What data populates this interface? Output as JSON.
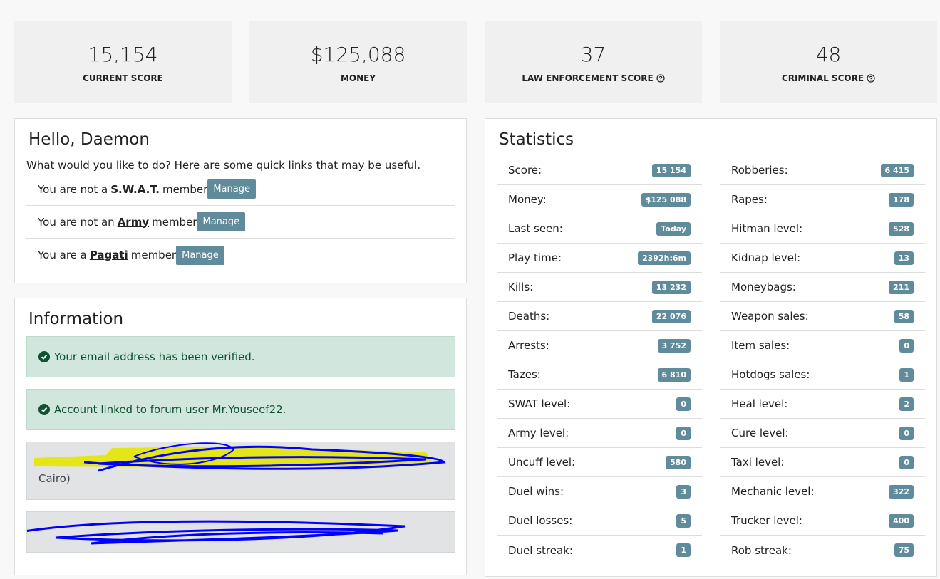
{
  "cards": [
    {
      "value": "15,154",
      "label": "CURRENT SCORE"
    },
    {
      "value": "$125,088",
      "label": "MONEY"
    },
    {
      "value": "37",
      "label": "LAW ENFORCEMENT SCORE"
    },
    {
      "value": "48",
      "label": "CRIMINAL SCORE"
    }
  ],
  "hello": {
    "title": "Hello, Daemon",
    "intro": "What would you like to do? Here are some quick links that may be useful.",
    "links": [
      {
        "prefix": "You are not a",
        "name": "S.W.A.T.",
        "suffix": "member",
        "button": "Manage"
      },
      {
        "prefix": "You are not an",
        "name": "Army",
        "suffix": "member",
        "button": "Manage"
      },
      {
        "prefix": "You are a",
        "name": "Pagati",
        "suffix": "member",
        "button": "Manage"
      }
    ]
  },
  "information": {
    "title": "Information",
    "alerts": [
      "Your email address has been verified.",
      "Account linked to forum user Mr.Youseef22."
    ],
    "notes": [
      "Cairo)"
    ]
  },
  "statistics": {
    "title": "Statistics",
    "left": [
      [
        "Score:",
        "15 154"
      ],
      [
        "Money:",
        "$125 088"
      ],
      [
        "Last seen:",
        "Today"
      ],
      [
        "Play time:",
        "2392h:6m"
      ],
      [
        "Kills:",
        "13 232"
      ],
      [
        "Deaths:",
        "22 076"
      ],
      [
        "Arrests:",
        "3 752"
      ],
      [
        "Tazes:",
        "6 810"
      ],
      [
        "SWAT level:",
        "0"
      ],
      [
        "Army level:",
        "0"
      ],
      [
        "Uncuff level:",
        "580"
      ],
      [
        "Duel wins:",
        "3"
      ],
      [
        "Duel losses:",
        "5"
      ],
      [
        "Duel streak:",
        "1"
      ]
    ],
    "right": [
      [
        "Robberies:",
        "6 415"
      ],
      [
        "Rapes:",
        "178"
      ],
      [
        "Hitman level:",
        "528"
      ],
      [
        "Kidnap level:",
        "13"
      ],
      [
        "Moneybags:",
        "211"
      ],
      [
        "Weapon sales:",
        "58"
      ],
      [
        "Item sales:",
        "0"
      ],
      [
        "Hotdogs sales:",
        "1"
      ],
      [
        "Heal level:",
        "2"
      ],
      [
        "Cure level:",
        "0"
      ],
      [
        "Taxi level:",
        "0"
      ],
      [
        "Mechanic level:",
        "322"
      ],
      [
        "Trucker level:",
        "400"
      ],
      [
        "Rob streak:",
        "75"
      ]
    ]
  }
}
